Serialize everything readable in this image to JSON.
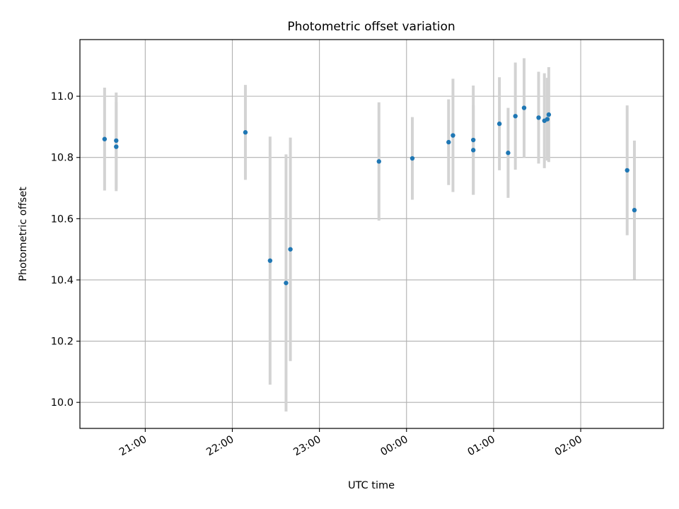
{
  "chart_data": {
    "type": "scatter",
    "title": "Photometric offset variation",
    "xlabel": "UTC time",
    "ylabel": "Photometric offset",
    "x_tick_labels": [
      "21:00",
      "22:00",
      "23:00",
      "00:00",
      "01:00",
      "02:00"
    ],
    "y_tick_labels": [
      "10.0",
      "10.2",
      "10.4",
      "10.6",
      "10.8",
      "11.0"
    ],
    "ylim": [
      9.915,
      11.185
    ],
    "xlim": [
      "20:15",
      "02:57"
    ],
    "grid": true,
    "colors": {
      "marker": "#1f77b4",
      "errorbar": "#d3d3d3",
      "grid": "#b0b0b0"
    },
    "points": [
      {
        "x": "20:32",
        "y": 10.86,
        "err": 0.168
      },
      {
        "x": "20:40",
        "y": 10.855,
        "err": 0.157
      },
      {
        "x": "20:40",
        "y": 10.835,
        "err": 0.145
      },
      {
        "x": "22:09",
        "y": 10.882,
        "err": 0.155
      },
      {
        "x": "22:26",
        "y": 10.463,
        "err": 0.405
      },
      {
        "x": "22:37",
        "y": 10.39,
        "err": 0.42
      },
      {
        "x": "22:40",
        "y": 10.5,
        "err": 0.365
      },
      {
        "x": "23:41",
        "y": 10.787,
        "err": 0.193
      },
      {
        "x": "00:04",
        "y": 10.797,
        "err": 0.135
      },
      {
        "x": "00:29",
        "y": 10.85,
        "err": 0.14
      },
      {
        "x": "00:32",
        "y": 10.872,
        "err": 0.185
      },
      {
        "x": "00:46",
        "y": 10.857,
        "err": 0.178
      },
      {
        "x": "00:46",
        "y": 10.824,
        "err": 0.146
      },
      {
        "x": "01:04",
        "y": 10.91,
        "err": 0.152
      },
      {
        "x": "01:10",
        "y": 10.815,
        "err": 0.147
      },
      {
        "x": "01:15",
        "y": 10.935,
        "err": 0.175
      },
      {
        "x": "01:21",
        "y": 10.962,
        "err": 0.162
      },
      {
        "x": "01:31",
        "y": 10.93,
        "err": 0.15
      },
      {
        "x": "01:35",
        "y": 10.92,
        "err": 0.155
      },
      {
        "x": "01:37",
        "y": 10.925,
        "err": 0.135
      },
      {
        "x": "01:38",
        "y": 10.94,
        "err": 0.155
      },
      {
        "x": "02:32",
        "y": 10.758,
        "err": 0.212
      },
      {
        "x": "02:37",
        "y": 10.628,
        "err": 0.227
      }
    ]
  }
}
